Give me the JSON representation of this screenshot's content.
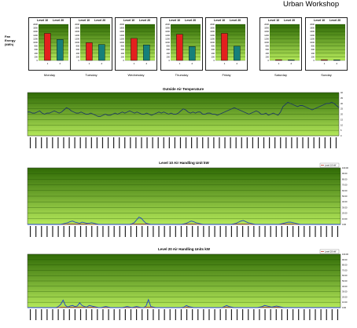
{
  "report_title": "Urban Workshop",
  "fan_energy_label": [
    "Fan",
    "Energy",
    "(kWh)"
  ],
  "colors": {
    "level10": "#e3201e",
    "level20": "#16807a",
    "chart_green_top": "#2f6a05",
    "chart_green_bottom": "#b4e85a",
    "temperature_line": "#1f3b63",
    "usage_line": "#1f40c8",
    "secondary_line": "#c0392b"
  },
  "chart_data": [
    {
      "type": "bar",
      "title": "Monday",
      "series_labels": [
        "Level 10",
        "Level 20"
      ],
      "categories": [
        "1",
        "2"
      ],
      "values": [
        1500,
        1160
      ],
      "ylim": [
        0,
        2000
      ],
      "yticks": [
        "0",
        "200",
        "400",
        "600",
        "800",
        "1000",
        "1200",
        "1400",
        "1600",
        "1800",
        "2000"
      ]
    },
    {
      "type": "bar",
      "title": "Tuesday",
      "series_labels": [
        "Level 10",
        "Level 20"
      ],
      "categories": [
        "1",
        "2"
      ],
      "values": [
        980,
        880
      ],
      "ylim": [
        0,
        2000
      ],
      "yticks": [
        "0",
        "200",
        "400",
        "600",
        "800",
        "1000",
        "1200",
        "1400",
        "1600",
        "1800",
        "2000"
      ]
    },
    {
      "type": "bar",
      "title": "Wednesday",
      "series_labels": [
        "Level 10",
        "Level 20"
      ],
      "categories": [
        "1",
        "2"
      ],
      "values": [
        1220,
        860
      ],
      "ylim": [
        0,
        2000
      ],
      "yticks": [
        "0",
        "200",
        "400",
        "600",
        "800",
        "1000",
        "1200",
        "1400",
        "1600",
        "1800",
        "2000"
      ]
    },
    {
      "type": "bar",
      "title": "Thursday",
      "series_labels": [
        "Level 10",
        "Level 20"
      ],
      "categories": [
        "1",
        "2"
      ],
      "values": [
        1450,
        770
      ],
      "ylim": [
        0,
        2000
      ],
      "yticks": [
        "0",
        "200",
        "400",
        "600",
        "800",
        "1000",
        "1200",
        "1400",
        "1600",
        "1800",
        "2000"
      ]
    },
    {
      "type": "bar",
      "title": "Friday",
      "series_labels": [
        "Level 10",
        "Level 20"
      ],
      "categories": [
        "1",
        "2"
      ],
      "values": [
        1500,
        790
      ],
      "ylim": [
        0,
        2000
      ],
      "yticks": [
        "0",
        "200",
        "400",
        "600",
        "800",
        "1000",
        "1200",
        "1400",
        "1600",
        "1800",
        "2000"
      ]
    },
    {
      "type": "bar",
      "title": "Saturday",
      "series_labels": [
        "Level 10",
        "Level 20"
      ],
      "categories": [
        "1",
        "2"
      ],
      "values": [
        40,
        30
      ],
      "ylim": [
        0,
        2000
      ],
      "yticks": [
        "0",
        "200",
        "400",
        "600",
        "800",
        "1000",
        "1200",
        "1400",
        "1600",
        "1800",
        "2000"
      ]
    },
    {
      "type": "bar",
      "title": "Sunday",
      "series_labels": [
        "Level 10",
        "Level 20"
      ],
      "categories": [
        "1",
        "2"
      ],
      "values": [
        40,
        30
      ],
      "ylim": [
        0,
        2000
      ],
      "yticks": [
        "0",
        "200",
        "400",
        "600",
        "800",
        "1000",
        "1200",
        "1400",
        "1600",
        "1800",
        "2000"
      ]
    },
    {
      "type": "line",
      "title": "Outside Air Temperature",
      "ylim": [
        0,
        40
      ],
      "y_right_ticks": [
        "0",
        "5",
        "10",
        "15",
        "20",
        "25",
        "30",
        "35",
        "40"
      ],
      "x_label_count": 56,
      "values": [
        22,
        22,
        21,
        21,
        22,
        23,
        21,
        20,
        21,
        21,
        22,
        23,
        22,
        21,
        22,
        24,
        26,
        25,
        23,
        22,
        21,
        21,
        22,
        21,
        20,
        20,
        21,
        20,
        19,
        18,
        18,
        19,
        20,
        19,
        19,
        20,
        21,
        20,
        21,
        22,
        21,
        22,
        23,
        22,
        21,
        22,
        21,
        20,
        20,
        21,
        20,
        19,
        20,
        21,
        22,
        21,
        22,
        21,
        20,
        21,
        20,
        20,
        21,
        23,
        25,
        24,
        22,
        21,
        22,
        21,
        22,
        22,
        20,
        20,
        21,
        21,
        20,
        20,
        19,
        20,
        21,
        22,
        23,
        24,
        25,
        26,
        25,
        24,
        23,
        22,
        21,
        20,
        21,
        22,
        23,
        22,
        20,
        20,
        21,
        19,
        20,
        21,
        20,
        19,
        22,
        27,
        29,
        31,
        30,
        29,
        28,
        27,
        28,
        28,
        27,
        26,
        25,
        24,
        25,
        26,
        27,
        28,
        29,
        30,
        30,
        31,
        30,
        28,
        26
      ]
    },
    {
      "type": "line",
      "title": "Level 10 Air Handling Unit kW",
      "legend": [
        "Level 10 kW"
      ],
      "ylim": [
        0,
        100
      ],
      "y_right_ticks": [
        "0.00",
        "10.00",
        "20.00",
        "30.00",
        "40.00",
        "50.00",
        "60.00",
        "70.00",
        "80.00",
        "90.00",
        "100.00"
      ],
      "x_label_count": 56,
      "values": [
        0,
        0,
        0,
        0,
        0,
        0,
        0,
        0,
        0,
        0,
        0,
        0,
        0,
        0,
        0,
        1,
        2,
        3,
        5,
        6,
        4,
        3,
        2,
        4,
        3,
        2,
        2,
        3,
        2,
        1,
        0,
        0,
        0,
        0,
        0,
        0,
        0,
        0,
        0,
        0,
        0,
        0,
        0,
        0,
        1,
        3,
        8,
        13,
        11,
        6,
        2,
        1,
        0,
        0,
        0,
        0,
        0,
        0,
        0,
        0,
        0,
        0,
        0,
        0,
        0,
        0,
        1,
        2,
        4,
        6,
        5,
        3,
        2,
        1,
        0,
        0,
        0,
        0,
        0,
        0,
        0,
        0,
        0,
        0,
        0,
        0,
        0,
        1,
        2,
        4,
        6,
        7,
        5,
        3,
        2,
        1,
        0,
        0,
        0,
        0,
        0,
        0,
        0,
        0,
        0,
        0,
        0,
        1,
        2,
        3,
        4,
        4,
        3,
        2,
        1,
        0,
        0,
        0,
        0,
        0,
        0,
        0,
        0,
        0,
        0,
        0,
        0,
        0,
        0,
        0,
        0,
        0,
        0
      ],
      "secondary_values": [
        0,
        0,
        0,
        0,
        0,
        0,
        0,
        0,
        0,
        0,
        0,
        0,
        0,
        0,
        0,
        0,
        0,
        1,
        1,
        1,
        1,
        1,
        1,
        1,
        1,
        1,
        0,
        0,
        0,
        0,
        0,
        0,
        0,
        0,
        0,
        0,
        0,
        0,
        0,
        0,
        0,
        0,
        0,
        0,
        0,
        1,
        1,
        1,
        1,
        1,
        1,
        0,
        0,
        0,
        0,
        0,
        0,
        0,
        0,
        0,
        0,
        0,
        0,
        0,
        0,
        0,
        0,
        1,
        1,
        1,
        1,
        1,
        0,
        0,
        0,
        0,
        0,
        0,
        0,
        0,
        0,
        0,
        0,
        0,
        0,
        0,
        0,
        0,
        1,
        1,
        1,
        1,
        1,
        1,
        0,
        0,
        0,
        0,
        0,
        0,
        0,
        0,
        0,
        0,
        0,
        0,
        0,
        0,
        1,
        1,
        1,
        1,
        1,
        0,
        0,
        0,
        0,
        0,
        0,
        0,
        0,
        0,
        0,
        0,
        0,
        0,
        0,
        0,
        0,
        0,
        0,
        0,
        0
      ]
    },
    {
      "type": "line",
      "title": "Level 20 Air Handling Units kW",
      "legend": [
        "Level 20 kW"
      ],
      "ylim": [
        0,
        100
      ],
      "y_right_ticks": [
        "0.00",
        "10.00",
        "20.00",
        "30.00",
        "40.00",
        "50.00",
        "60.00",
        "70.00",
        "80.00",
        "90.00",
        "100.00"
      ],
      "x_label_count": 56,
      "values": [
        0,
        0,
        0,
        0,
        0,
        0,
        0,
        0,
        0,
        0,
        0,
        0,
        0,
        2,
        6,
        14,
        4,
        1,
        3,
        4,
        2,
        3,
        9,
        4,
        2,
        1,
        4,
        3,
        2,
        1,
        0,
        0,
        1,
        2,
        1,
        0,
        0,
        0,
        0,
        0,
        0,
        1,
        2,
        1,
        0,
        1,
        2,
        1,
        0,
        0,
        3,
        15,
        2,
        1,
        0,
        0,
        0,
        0,
        0,
        0,
        0,
        0,
        0,
        0,
        0,
        0,
        1,
        4,
        2,
        1,
        0,
        0,
        0,
        0,
        0,
        0,
        0,
        0,
        0,
        0,
        0,
        0,
        0,
        2,
        4,
        2,
        1,
        0,
        0,
        0,
        0,
        0,
        0,
        0,
        0,
        0,
        0,
        0,
        1,
        2,
        4,
        3,
        2,
        1,
        2,
        3,
        2,
        1,
        0,
        0,
        0,
        0,
        0,
        0,
        0,
        0,
        0,
        0,
        0,
        0,
        0,
        0,
        0,
        0,
        0,
        0,
        0,
        0,
        0,
        0,
        0,
        0,
        0
      ],
      "secondary_values": [
        0,
        0,
        0,
        0,
        0,
        0,
        0,
        0,
        0,
        0,
        0,
        0,
        0,
        0,
        1,
        1,
        1,
        1,
        1,
        1,
        1,
        1,
        1,
        1,
        1,
        1,
        1,
        1,
        1,
        0,
        0,
        0,
        0,
        0,
        0,
        0,
        0,
        0,
        0,
        0,
        0,
        0,
        0,
        0,
        0,
        0,
        0,
        0,
        0,
        0,
        1,
        1,
        1,
        0,
        0,
        0,
        0,
        0,
        0,
        0,
        0,
        0,
        0,
        0,
        0,
        0,
        0,
        1,
        1,
        1,
        0,
        0,
        0,
        0,
        0,
        0,
        0,
        0,
        0,
        0,
        0,
        0,
        0,
        1,
        1,
        1,
        1,
        0,
        0,
        0,
        0,
        0,
        0,
        0,
        0,
        0,
        0,
        0,
        1,
        1,
        1,
        1,
        1,
        1,
        1,
        1,
        1,
        1,
        0,
        0,
        0,
        0,
        0,
        0,
        0,
        0,
        0,
        0,
        0,
        0,
        0,
        0,
        0,
        0,
        0,
        0,
        0,
        0,
        0,
        0,
        0,
        0,
        0
      ]
    }
  ]
}
